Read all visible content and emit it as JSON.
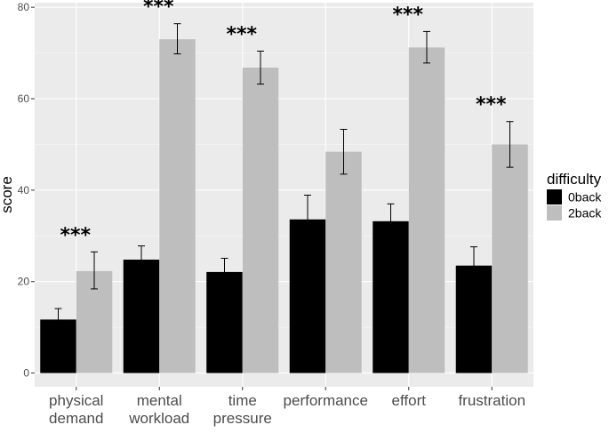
{
  "chart_data": {
    "type": "bar",
    "title": "",
    "xlabel": "",
    "ylabel": "score",
    "ylim": [
      -3,
      81
    ],
    "yticks": [
      0,
      20,
      40,
      60,
      80
    ],
    "categories": [
      [
        "physical",
        "demand"
      ],
      [
        "mental",
        "workload"
      ],
      [
        "time",
        "pressure"
      ],
      [
        "performance"
      ],
      [
        "effort"
      ],
      [
        "frustration"
      ]
    ],
    "series": [
      {
        "name": "0back",
        "color": "#000000",
        "values": [
          11.7,
          24.8,
          22.1,
          33.6,
          33.2,
          23.5
        ],
        "err_low": [
          9.4,
          21.8,
          19.2,
          28.4,
          29.3,
          19.6
        ],
        "err_high": [
          14.1,
          27.8,
          25.1,
          38.9,
          37.0,
          27.6
        ]
      },
      {
        "name": "2back",
        "color": "#bebebe",
        "values": [
          22.3,
          73.0,
          66.8,
          48.4,
          71.2,
          50.0
        ],
        "err_low": [
          18.4,
          69.8,
          63.2,
          43.5,
          67.8,
          45.0
        ],
        "err_high": [
          26.5,
          76.4,
          70.4,
          53.3,
          74.7,
          55.0
        ]
      }
    ],
    "significance": [
      "***",
      "***",
      "***",
      "",
      "***",
      "***"
    ],
    "legend": {
      "title": "difficulty",
      "position": "right"
    },
    "grid": true,
    "background": "#ebebeb"
  }
}
